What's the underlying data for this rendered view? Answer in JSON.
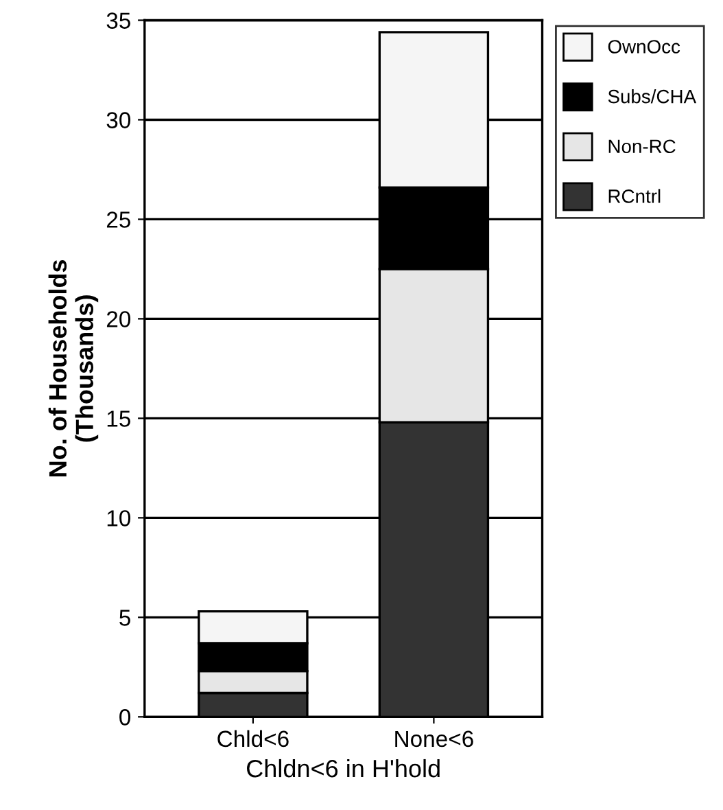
{
  "chart_data": {
    "type": "bar",
    "stacked": true,
    "xlabel": "Chldn<6 in H'hold",
    "ylabel": "No. of Households\n(Thousands)",
    "categories": [
      "Chld<6",
      "None<6"
    ],
    "series": [
      {
        "name": "RCntrl",
        "color": "#333333",
        "values": [
          1.2,
          14.8
        ]
      },
      {
        "name": "Non-RC",
        "color": "#e6e6e6",
        "values": [
          1.1,
          7.7
        ]
      },
      {
        "name": "Subs/CHA",
        "color": "#000000",
        "values": [
          1.4,
          4.1
        ]
      },
      {
        "name": "OwnOcc",
        "color": "#f5f5f5",
        "values": [
          1.6,
          7.8
        ]
      }
    ],
    "ylim": [
      0,
      35
    ],
    "yticks": [
      0,
      5,
      10,
      15,
      20,
      25,
      30,
      35
    ],
    "grid": "y",
    "legend": "right"
  }
}
